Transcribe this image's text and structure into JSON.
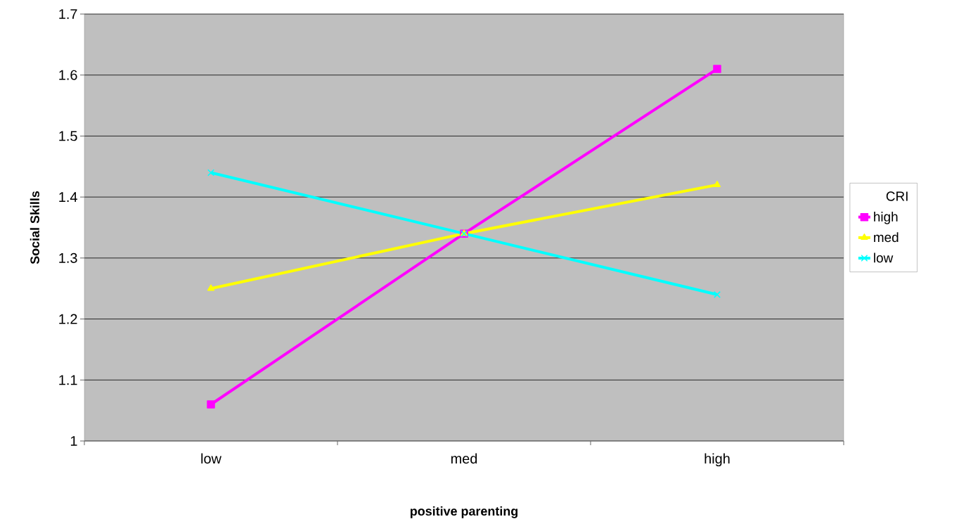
{
  "chart_data": {
    "type": "line",
    "xlabel": "positive parenting",
    "ylabel": "Social Skills",
    "legend_title": "CRI",
    "categories": [
      "low",
      "med",
      "high"
    ],
    "series": [
      {
        "name": "high",
        "color": "#ff00ff",
        "marker": "square",
        "values": [
          1.06,
          1.34,
          1.61
        ]
      },
      {
        "name": "med",
        "color": "#ffff00",
        "marker": "triangle",
        "values": [
          1.25,
          1.34,
          1.42
        ]
      },
      {
        "name": "low",
        "color": "#00ffff",
        "marker": "cross",
        "values": [
          1.44,
          1.34,
          1.24
        ]
      }
    ],
    "ylim": [
      1,
      1.7
    ],
    "yticks": [
      1,
      1.1,
      1.2,
      1.3,
      1.4,
      1.5,
      1.6,
      1.7
    ],
    "grid": "y",
    "legend": "right",
    "line_style": "solid"
  }
}
